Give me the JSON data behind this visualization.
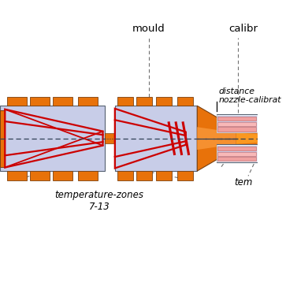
{
  "bg_color": "#ffffff",
  "orange": "#E8720A",
  "orange2": "#F59030",
  "orange3": "#FA9820",
  "dark_red": "#CC0000",
  "light_blue": "#C8CDE8",
  "pink": "#F0A0A0",
  "border_color": "#556070",
  "heater_edge": "#7A4010",
  "centerline_color": "#304055",
  "annotation_color": "#707070",
  "label_mould": "mould",
  "label_calib": "calibr",
  "label_distance_line1": "distance",
  "label_distance_line2": "nozzle-calibrat",
  "label_temp_zones_line1": "temperature-zones",
  "label_temp_zones_line2": "7-13",
  "label_temp_short": "tem"
}
